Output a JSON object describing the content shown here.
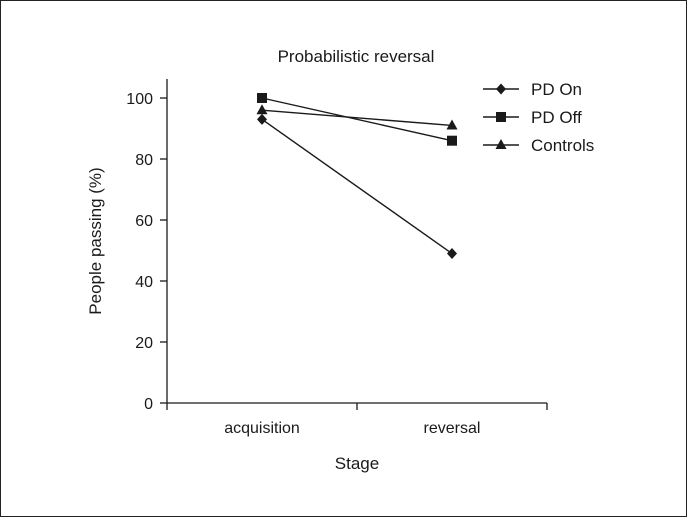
{
  "chart_data": {
    "type": "line",
    "title": "Probabilistic reversal",
    "xlabel": "Stage",
    "ylabel": "People passing (%)",
    "categories": [
      "acquisition",
      "reversal"
    ],
    "ylim": [
      0,
      100
    ],
    "yticks": [
      0,
      20,
      40,
      60,
      80,
      100
    ],
    "grid": false,
    "legend_position": "top-right",
    "series": [
      {
        "name": "PD On",
        "marker": "diamond",
        "values": [
          93,
          49
        ]
      },
      {
        "name": "PD Off",
        "marker": "square",
        "values": [
          100,
          86
        ]
      },
      {
        "name": "Controls",
        "marker": "triangle",
        "values": [
          96,
          91
        ]
      }
    ]
  }
}
